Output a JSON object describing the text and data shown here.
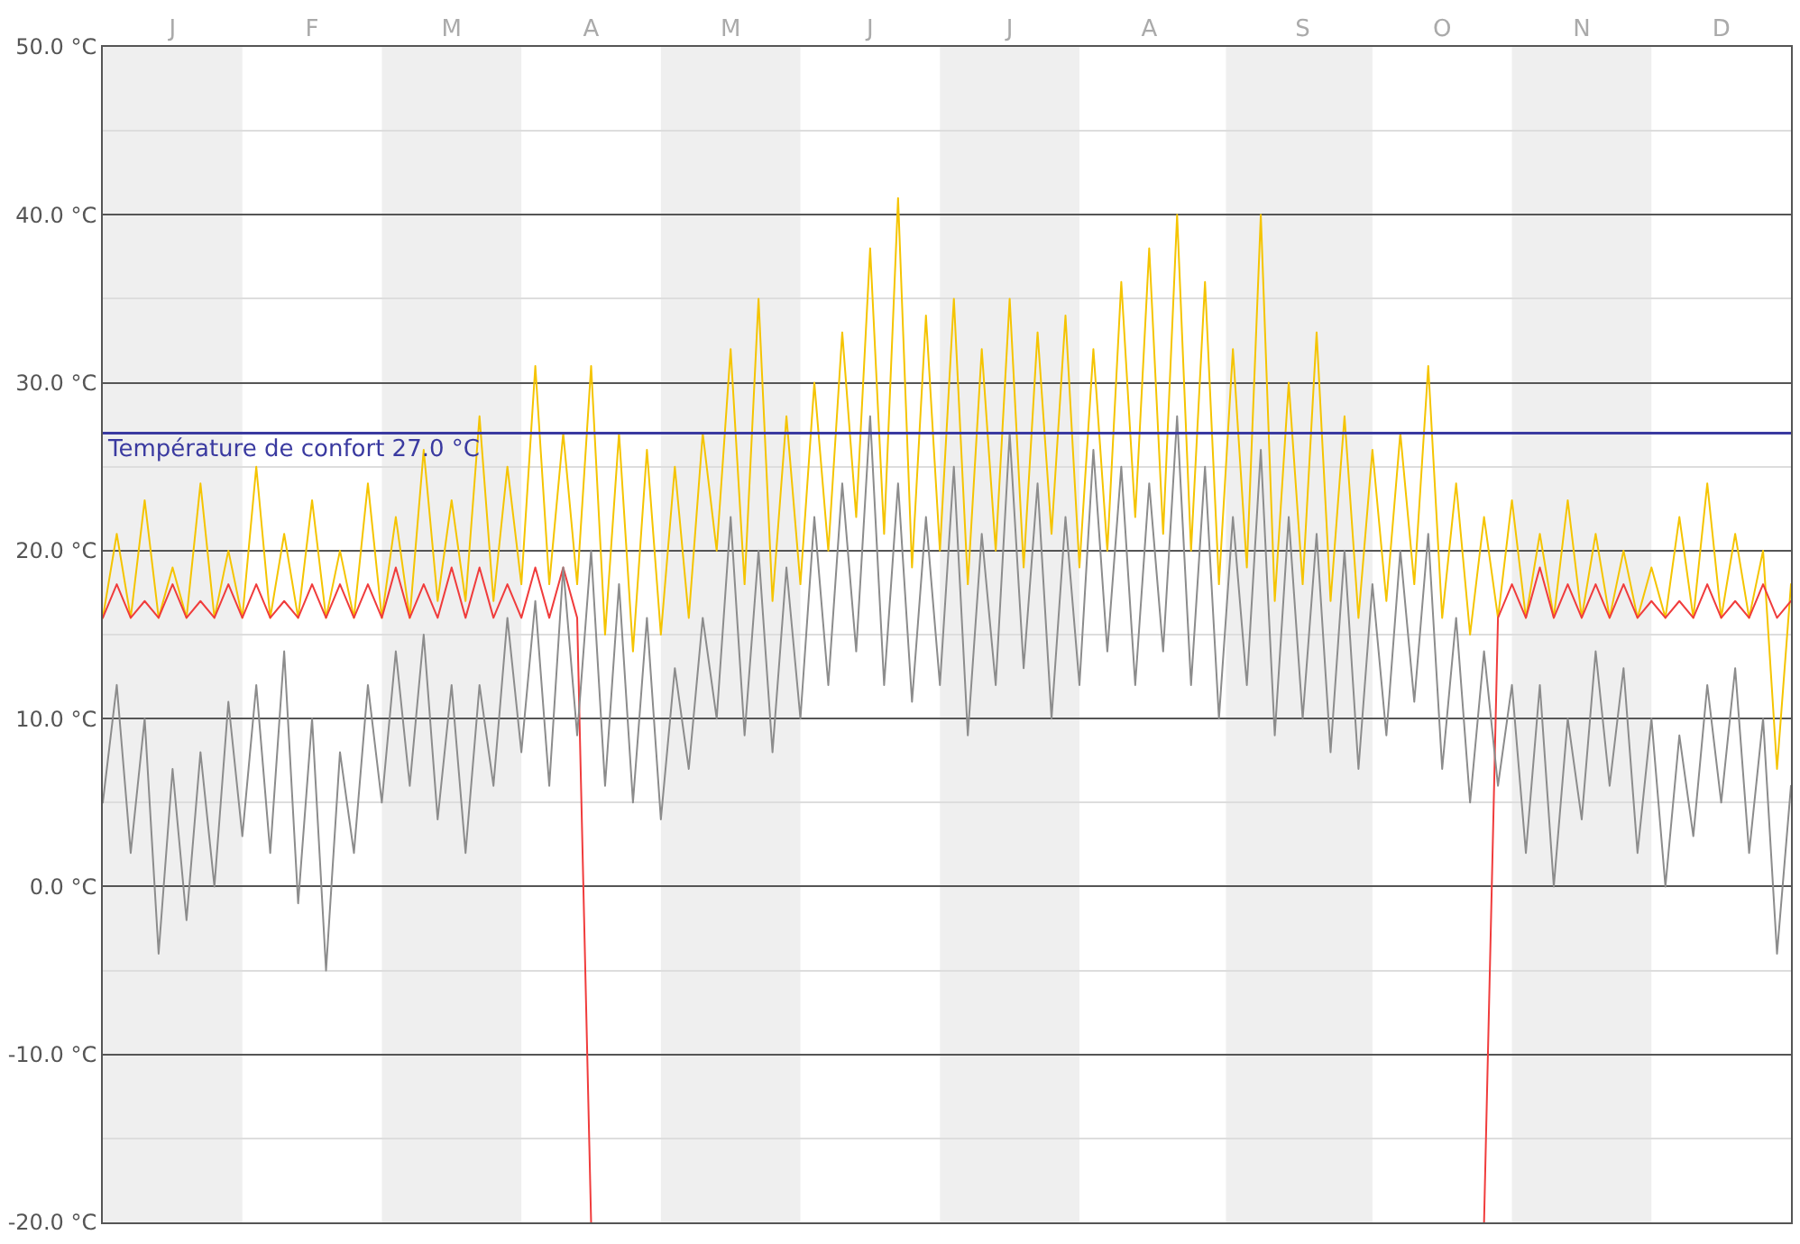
{
  "chart_data": {
    "type": "line",
    "categories": [
      null,
      null,
      null,
      null,
      null,
      "J",
      null,
      null,
      null,
      null,
      null,
      null,
      null,
      null,
      null,
      "F",
      null,
      null,
      null,
      null,
      null,
      null,
      null,
      null,
      null,
      "M",
      null,
      null,
      null,
      null,
      null,
      null,
      null,
      null,
      null,
      "A",
      null,
      null,
      null,
      null,
      null,
      null,
      null,
      null,
      null,
      "M",
      null,
      null,
      null,
      null,
      null,
      null,
      null,
      null,
      null,
      "J",
      null,
      null,
      null,
      null,
      null,
      null,
      null,
      null,
      null,
      "J",
      null,
      null,
      null,
      null,
      null,
      null,
      null,
      null,
      null,
      "A",
      null,
      null,
      null,
      null,
      null,
      null,
      null,
      null,
      null,
      null,
      "S",
      null,
      null,
      null,
      null,
      null,
      null,
      null,
      null,
      null,
      "O",
      null,
      null,
      null,
      null,
      null,
      null,
      null,
      null,
      null,
      "N",
      null,
      null,
      null,
      null,
      null,
      null,
      null,
      null,
      null,
      "D",
      null,
      null,
      null,
      null,
      null
    ],
    "series": [
      {
        "color": "#f5c400",
        "values": [
          16,
          21,
          16,
          23,
          16,
          19,
          16,
          24,
          16,
          20,
          16,
          25,
          16,
          21,
          16,
          23,
          16,
          20,
          16,
          24,
          16,
          22,
          16,
          26,
          17,
          23,
          17,
          28,
          17,
          25,
          18,
          31,
          18,
          27,
          18,
          31,
          15,
          27,
          14,
          26,
          15,
          25,
          16,
          27,
          20,
          32,
          18,
          35,
          17,
          28,
          18,
          30,
          20,
          33,
          22,
          38,
          21,
          41,
          19,
          34,
          20,
          35,
          18,
          32,
          20,
          35,
          19,
          33,
          21,
          34,
          19,
          32,
          20,
          36,
          22,
          38,
          21,
          40,
          20,
          36,
          18,
          32,
          19,
          40,
          17,
          30,
          18,
          33,
          17,
          28,
          16,
          26,
          17,
          27,
          18,
          31,
          16,
          24,
          15,
          22,
          16,
          23,
          16,
          21,
          16,
          23,
          16,
          21,
          16,
          20,
          16,
          19,
          16,
          22,
          16,
          24,
          16,
          21,
          16,
          20,
          7,
          18
        ]
      },
      {
        "color": "#f03c3c",
        "values": [
          16,
          18,
          16,
          17,
          16,
          18,
          16,
          17,
          16,
          18,
          16,
          18,
          16,
          17,
          16,
          18,
          16,
          18,
          16,
          18,
          16,
          19,
          16,
          18,
          16,
          19,
          16,
          19,
          16,
          18,
          16,
          19,
          16,
          19,
          16,
          -20,
          null,
          null,
          null,
          null,
          null,
          null,
          null,
          null,
          null,
          null,
          null,
          null,
          null,
          null,
          null,
          null,
          null,
          null,
          null,
          null,
          null,
          null,
          null,
          null,
          null,
          null,
          null,
          null,
          null,
          null,
          null,
          null,
          null,
          null,
          null,
          null,
          null,
          null,
          null,
          null,
          null,
          null,
          null,
          null,
          null,
          null,
          null,
          null,
          null,
          null,
          null,
          null,
          null,
          null,
          null,
          null,
          null,
          null,
          null,
          null,
          null,
          null,
          null,
          -20,
          16,
          18,
          16,
          19,
          16,
          18,
          16,
          18,
          16,
          18,
          16,
          17,
          16,
          17,
          16,
          18,
          16,
          17,
          16,
          18,
          16,
          17
        ]
      },
      {
        "color": "#8c8c8c",
        "values": [
          5,
          12,
          2,
          10,
          -4,
          7,
          -2,
          8,
          0,
          11,
          3,
          12,
          2,
          14,
          -1,
          10,
          -5,
          8,
          2,
          12,
          5,
          14,
          6,
          15,
          4,
          12,
          2,
          12,
          6,
          16,
          8,
          17,
          6,
          19,
          9,
          20,
          6,
          18,
          5,
          16,
          4,
          13,
          7,
          16,
          10,
          22,
          9,
          20,
          8,
          19,
          10,
          22,
          12,
          24,
          14,
          28,
          12,
          24,
          11,
          22,
          12,
          25,
          9,
          21,
          12,
          27,
          13,
          24,
          10,
          22,
          12,
          26,
          14,
          25,
          12,
          24,
          14,
          28,
          12,
          25,
          10,
          22,
          12,
          26,
          9,
          22,
          10,
          21,
          8,
          20,
          7,
          18,
          9,
          20,
          11,
          21,
          7,
          16,
          5,
          14,
          6,
          12,
          2,
          12,
          0,
          10,
          4,
          14,
          6,
          13,
          2,
          10,
          0,
          9,
          3,
          12,
          5,
          13,
          2,
          10,
          -4,
          6
        ]
      }
    ],
    "ylim": [
      -20,
      50
    ],
    "yticks": [
      {
        "value": -20,
        "label": "-20.0 °C"
      },
      {
        "value": -10,
        "label": "-10.0 °C"
      },
      {
        "value": 0,
        "label": "0.0 °C"
      },
      {
        "value": 10,
        "label": "10.0 °C"
      },
      {
        "value": 20,
        "label": "20.0 °C"
      },
      {
        "value": 30,
        "label": "30.0 °C"
      },
      {
        "value": 40,
        "label": "40.0 °C"
      },
      {
        "value": 50,
        "label": "50.0 °C"
      }
    ],
    "grid": "y",
    "line_style": "solid",
    "marker": "none",
    "ref_lines": [
      {
        "axis": "y",
        "value": 27,
        "label": "Température de confort 27.0 °C",
        "color": "#3a3aa0"
      }
    ]
  }
}
